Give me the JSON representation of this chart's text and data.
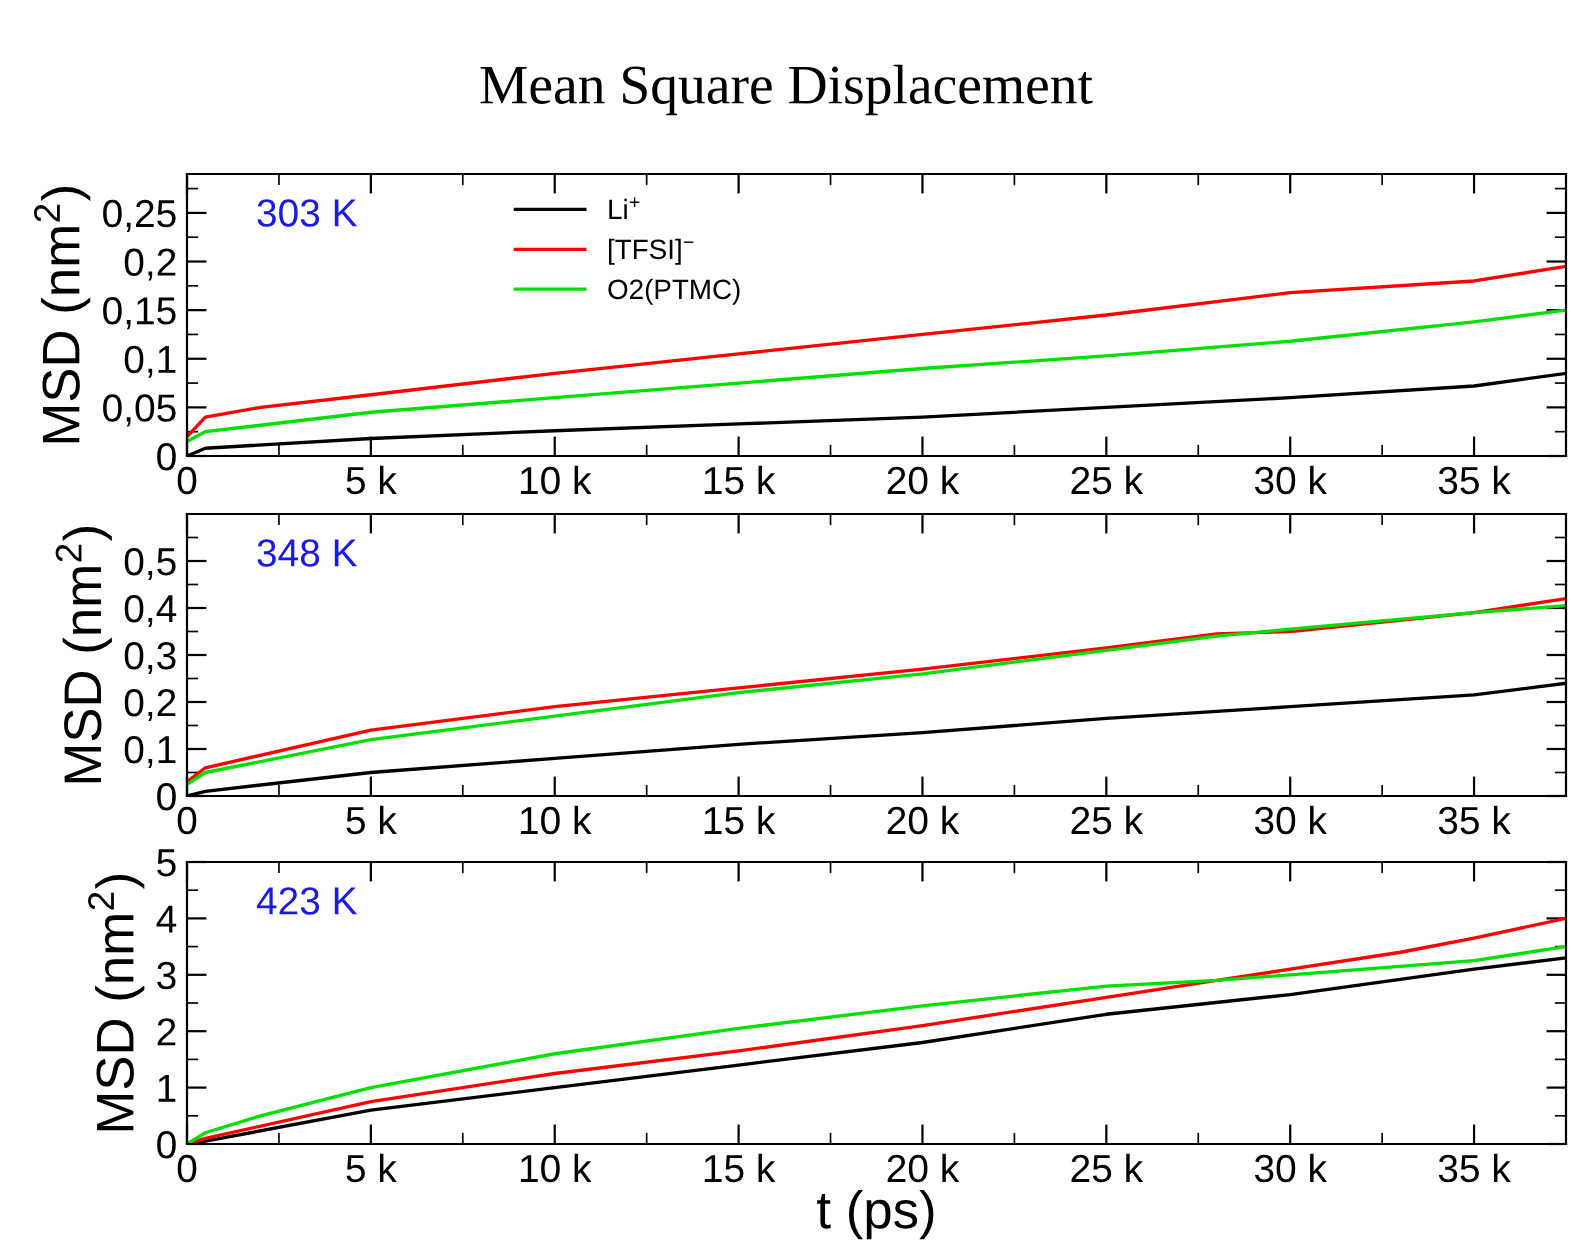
{
  "chart_data": [
    {
      "type": "line",
      "title": "Mean Square Displacement",
      "ylabel": "MSD (nm$^{2}$)",
      "annotations": [
        "303 K"
      ],
      "legend": "top left",
      "xlim": [
        0,
        37500
      ],
      "xticks": [
        0,
        {
          "value": 5000,
          "label": "5 k"
        },
        {
          "value": 10000,
          "label": "10 k"
        },
        {
          "value": 15000,
          "label": "15 k"
        },
        {
          "value": 20000,
          "label": "20 k"
        },
        {
          "value": 25000,
          "label": "25 k"
        },
        {
          "value": 30000,
          "label": "30 k"
        },
        {
          "value": 35000,
          "label": "35 k"
        }
      ],
      "ylim": [
        0,
        0.29
      ],
      "yticks": [
        0,
        {
          "value": 0.05,
          "label": "0,05"
        },
        {
          "value": 0.1,
          "label": "0,1"
        },
        {
          "value": 0.15,
          "label": "0,15"
        },
        {
          "value": 0.2,
          "label": "0,2"
        },
        {
          "value": 0.25,
          "label": "0,25"
        }
      ],
      "grid": false,
      "series": [
        {
          "name": "Li$^{+}$",
          "color": "#000000",
          "x": [
            0,
            500,
            5000,
            10000,
            15000,
            20000,
            25000,
            30000,
            35000,
            37500
          ],
          "values": [
            0,
            0.008,
            0.018,
            0.026,
            0.033,
            0.04,
            0.05,
            0.06,
            0.072,
            0.085
          ]
        },
        {
          "name": "[TFSI]$^{−}$",
          "color": "#ff0000",
          "x": [
            0,
            500,
            2000,
            5000,
            10000,
            15000,
            20000,
            25000,
            30000,
            35000,
            37500
          ],
          "values": [
            0.02,
            0.04,
            0.05,
            0.063,
            0.085,
            0.105,
            0.125,
            0.145,
            0.168,
            0.18,
            0.195
          ]
        },
        {
          "name": "O2(PTMC)",
          "color": "#00e000",
          "x": [
            0,
            500,
            5000,
            10000,
            15000,
            20000,
            25000,
            30000,
            35000,
            37500
          ],
          "values": [
            0.015,
            0.025,
            0.045,
            0.06,
            0.075,
            0.09,
            0.103,
            0.118,
            0.138,
            0.15
          ]
        }
      ]
    },
    {
      "type": "line",
      "ylabel": "MSD (nm$^{2}$)",
      "annotations": [
        "348 K"
      ],
      "xlim": [
        0,
        37500
      ],
      "xticks": [
        0,
        {
          "value": 5000,
          "label": "5 k"
        },
        {
          "value": 10000,
          "label": "10 k"
        },
        {
          "value": 15000,
          "label": "15 k"
        },
        {
          "value": 20000,
          "label": "20 k"
        },
        {
          "value": 25000,
          "label": "25 k"
        },
        {
          "value": 30000,
          "label": "30 k"
        },
        {
          "value": 35000,
          "label": "35 k"
        }
      ],
      "ylim": [
        0,
        0.6
      ],
      "yticks": [
        0,
        {
          "value": 0.1,
          "label": "0,1"
        },
        {
          "value": 0.2,
          "label": "0,2"
        },
        {
          "value": 0.3,
          "label": "0,3"
        },
        {
          "value": 0.4,
          "label": "0,4"
        },
        {
          "value": 0.5,
          "label": "0,5"
        }
      ],
      "grid": false,
      "series": [
        {
          "color": "#000000",
          "x": [
            0,
            500,
            5000,
            10000,
            15000,
            20000,
            25000,
            30000,
            35000,
            37500
          ],
          "values": [
            0,
            0.01,
            0.05,
            0.08,
            0.11,
            0.135,
            0.165,
            0.19,
            0.215,
            0.24
          ]
        },
        {
          "color": "#ff0000",
          "x": [
            0,
            500,
            5000,
            10000,
            15000,
            20000,
            25000,
            28000,
            30000,
            35000,
            37500
          ],
          "values": [
            0.03,
            0.06,
            0.14,
            0.19,
            0.23,
            0.27,
            0.315,
            0.345,
            0.35,
            0.39,
            0.42
          ]
        },
        {
          "color": "#00e000",
          "x": [
            0,
            500,
            5000,
            10000,
            15000,
            20000,
            25000,
            28000,
            30000,
            35000,
            37500
          ],
          "values": [
            0.025,
            0.05,
            0.12,
            0.17,
            0.22,
            0.26,
            0.31,
            0.34,
            0.355,
            0.39,
            0.405
          ]
        }
      ]
    },
    {
      "type": "line",
      "ylabel": "MSD (nm$^{2}$)",
      "xlabel": "t (ps)",
      "annotations": [
        "423 K"
      ],
      "xlim": [
        0,
        37500
      ],
      "xticks": [
        0,
        {
          "value": 5000,
          "label": "5 k"
        },
        {
          "value": 10000,
          "label": "10 k"
        },
        {
          "value": 15000,
          "label": "15 k"
        },
        {
          "value": 20000,
          "label": "20 k"
        },
        {
          "value": 25000,
          "label": "25 k"
        },
        {
          "value": 30000,
          "label": "30 k"
        },
        {
          "value": 35000,
          "label": "35 k"
        }
      ],
      "ylim": [
        0,
        5
      ],
      "yticks": [
        0,
        1,
        2,
        3,
        4,
        5
      ],
      "grid": false,
      "series": [
        {
          "color": "#000000",
          "x": [
            0,
            500,
            5000,
            10000,
            15000,
            20000,
            25000,
            30000,
            35000,
            37500
          ],
          "values": [
            0,
            0.05,
            0.6,
            1.0,
            1.4,
            1.8,
            2.3,
            2.65,
            3.1,
            3.3
          ]
        },
        {
          "color": "#ff0000",
          "x": [
            0,
            500,
            5000,
            10000,
            15000,
            20000,
            25000,
            28000,
            30000,
            33000,
            35000,
            37500
          ],
          "values": [
            0,
            0.1,
            0.75,
            1.25,
            1.65,
            2.1,
            2.6,
            2.9,
            3.1,
            3.4,
            3.65,
            4.0
          ]
        },
        {
          "color": "#00e000",
          "x": [
            0,
            500,
            2000,
            5000,
            10000,
            15000,
            20000,
            25000,
            28000,
            30000,
            35000,
            37500
          ],
          "values": [
            0,
            0.2,
            0.5,
            1.0,
            1.6,
            2.05,
            2.45,
            2.8,
            2.9,
            3.0,
            3.25,
            3.5
          ]
        }
      ]
    }
  ]
}
